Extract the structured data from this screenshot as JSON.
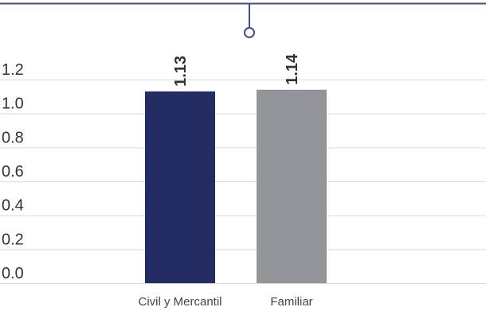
{
  "chart_data": {
    "type": "bar",
    "categories": [
      "Civil y Mercantil",
      "Familiar"
    ],
    "values": [
      1.13,
      1.14
    ],
    "value_labels": [
      "1.13",
      "1.14"
    ],
    "y_ticks": [
      0.0,
      0.2,
      0.4,
      0.6,
      0.8,
      1.0,
      1.2
    ],
    "y_tick_labels": [
      "0.0",
      "0.2",
      "0.4",
      "0.6",
      "0.8",
      "1.0",
      "1.2"
    ],
    "ylim": [
      0,
      1.2
    ],
    "grid": true,
    "legend": "none",
    "colors": [
      "#232c63",
      "#939598"
    ],
    "accent_color": "#3d4f86"
  }
}
